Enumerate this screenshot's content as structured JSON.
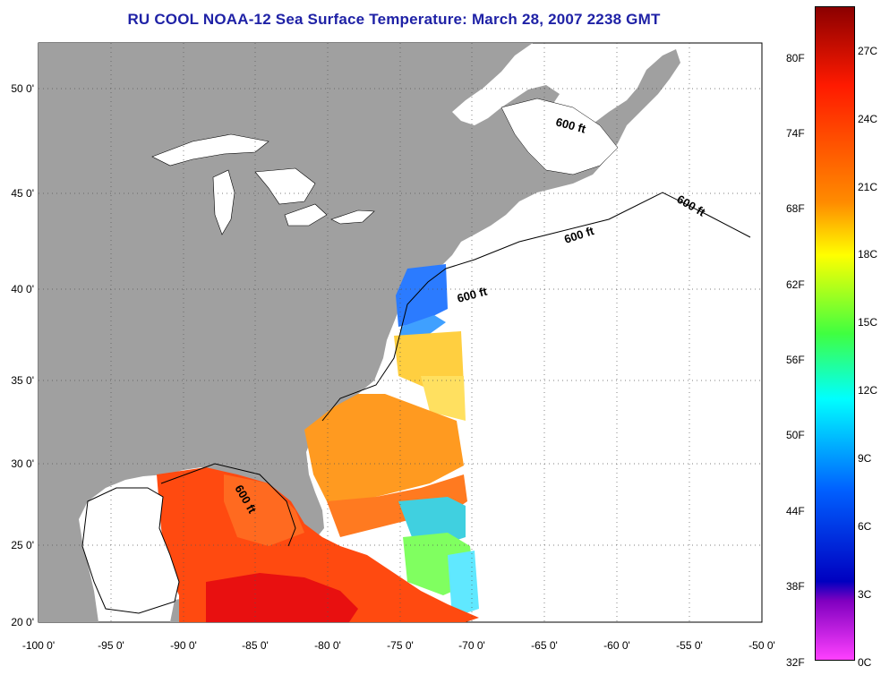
{
  "title": "RU COOL  NOAA-12  Sea Surface Temperature:  March 28, 2007 2238 GMT",
  "map": {
    "lon_range": [
      -100,
      -50
    ],
    "lat_range": [
      20,
      52.5
    ],
    "x_ticks": [
      "-100 0'",
      "-95 0'",
      "-90 0'",
      "-85 0'",
      "-80 0'",
      "-75 0'",
      "-70 0'",
      "-65 0'",
      "-60 0'",
      "-55 0'",
      "-50 0'"
    ],
    "y_ticks": [
      "50 0'",
      "45 0'",
      "40 0'",
      "35 0'",
      "30 0'",
      "25 0'",
      "20 0'"
    ],
    "isobath_label": "600 ft",
    "land_color": "#a0a0a0",
    "water_color": "#ffffff"
  },
  "colorbar": {
    "fahrenheit_labels": [
      "80F",
      "74F",
      "68F",
      "62F",
      "56F",
      "50F",
      "44F",
      "38F",
      "32F"
    ],
    "celsius_labels": [
      "27C",
      "24C",
      "21C",
      "18C",
      "15C",
      "12C",
      "9C",
      "6C",
      "3C",
      "0C"
    ],
    "colors": [
      "#8b0000",
      "#ff1a00",
      "#ff8c00",
      "#ffff00",
      "#40ff40",
      "#00ffff",
      "#0060ff",
      "#0000c0",
      "#8000c0",
      "#ff40ff"
    ]
  }
}
